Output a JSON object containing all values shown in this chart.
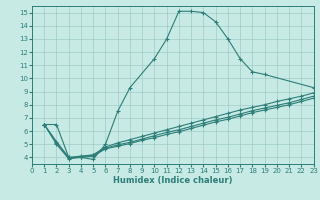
{
  "xlabel": "Humidex (Indice chaleur)",
  "xlim": [
    0,
    23
  ],
  "ylim": [
    3.5,
    15.5
  ],
  "xticks": [
    0,
    1,
    2,
    3,
    4,
    5,
    6,
    7,
    8,
    9,
    10,
    11,
    12,
    13,
    14,
    15,
    16,
    17,
    18,
    19,
    20,
    21,
    22,
    23
  ],
  "yticks": [
    4,
    5,
    6,
    7,
    8,
    9,
    10,
    11,
    12,
    13,
    14,
    15
  ],
  "bg_color": "#c8eae4",
  "line_color": "#2d7d78",
  "grid_color": "#a0ccc6",
  "series": [
    {
      "x": [
        1,
        2,
        3,
        4,
        5,
        6,
        7,
        8,
        10,
        11,
        12,
        13,
        14,
        15,
        16,
        17,
        18,
        19,
        23
      ],
      "y": [
        6.5,
        6.5,
        4.0,
        4.0,
        3.85,
        5.0,
        7.5,
        9.3,
        11.5,
        13.0,
        15.1,
        15.1,
        15.0,
        14.3,
        13.0,
        11.5,
        10.5,
        10.3,
        9.3
      ]
    },
    {
      "x": [
        1,
        2,
        3,
        4,
        5,
        6,
        7,
        8,
        9,
        10,
        11,
        12,
        13,
        14,
        15,
        16,
        17,
        18,
        19,
        20,
        21,
        22,
        23
      ],
      "y": [
        6.5,
        5.2,
        4.0,
        4.1,
        4.2,
        4.8,
        5.1,
        5.35,
        5.6,
        5.85,
        6.1,
        6.35,
        6.6,
        6.85,
        7.1,
        7.35,
        7.6,
        7.8,
        8.0,
        8.25,
        8.45,
        8.65,
        8.9
      ]
    },
    {
      "x": [
        1,
        2,
        3,
        4,
        5,
        6,
        7,
        8,
        9,
        10,
        11,
        12,
        13,
        14,
        15,
        16,
        17,
        18,
        19,
        20,
        21,
        22,
        23
      ],
      "y": [
        6.5,
        5.1,
        3.95,
        4.05,
        4.15,
        4.7,
        4.95,
        5.15,
        5.4,
        5.65,
        5.9,
        6.1,
        6.35,
        6.6,
        6.85,
        7.05,
        7.3,
        7.55,
        7.75,
        7.95,
        8.15,
        8.4,
        8.65
      ]
    },
    {
      "x": [
        1,
        2,
        3,
        4,
        5,
        6,
        7,
        8,
        9,
        10,
        11,
        12,
        13,
        14,
        15,
        16,
        17,
        18,
        19,
        20,
        21,
        22,
        23
      ],
      "y": [
        6.5,
        5.0,
        3.9,
        4.0,
        4.1,
        4.65,
        4.85,
        5.05,
        5.3,
        5.5,
        5.75,
        5.95,
        6.2,
        6.45,
        6.7,
        6.9,
        7.15,
        7.4,
        7.6,
        7.8,
        8.0,
        8.25,
        8.5
      ]
    }
  ]
}
